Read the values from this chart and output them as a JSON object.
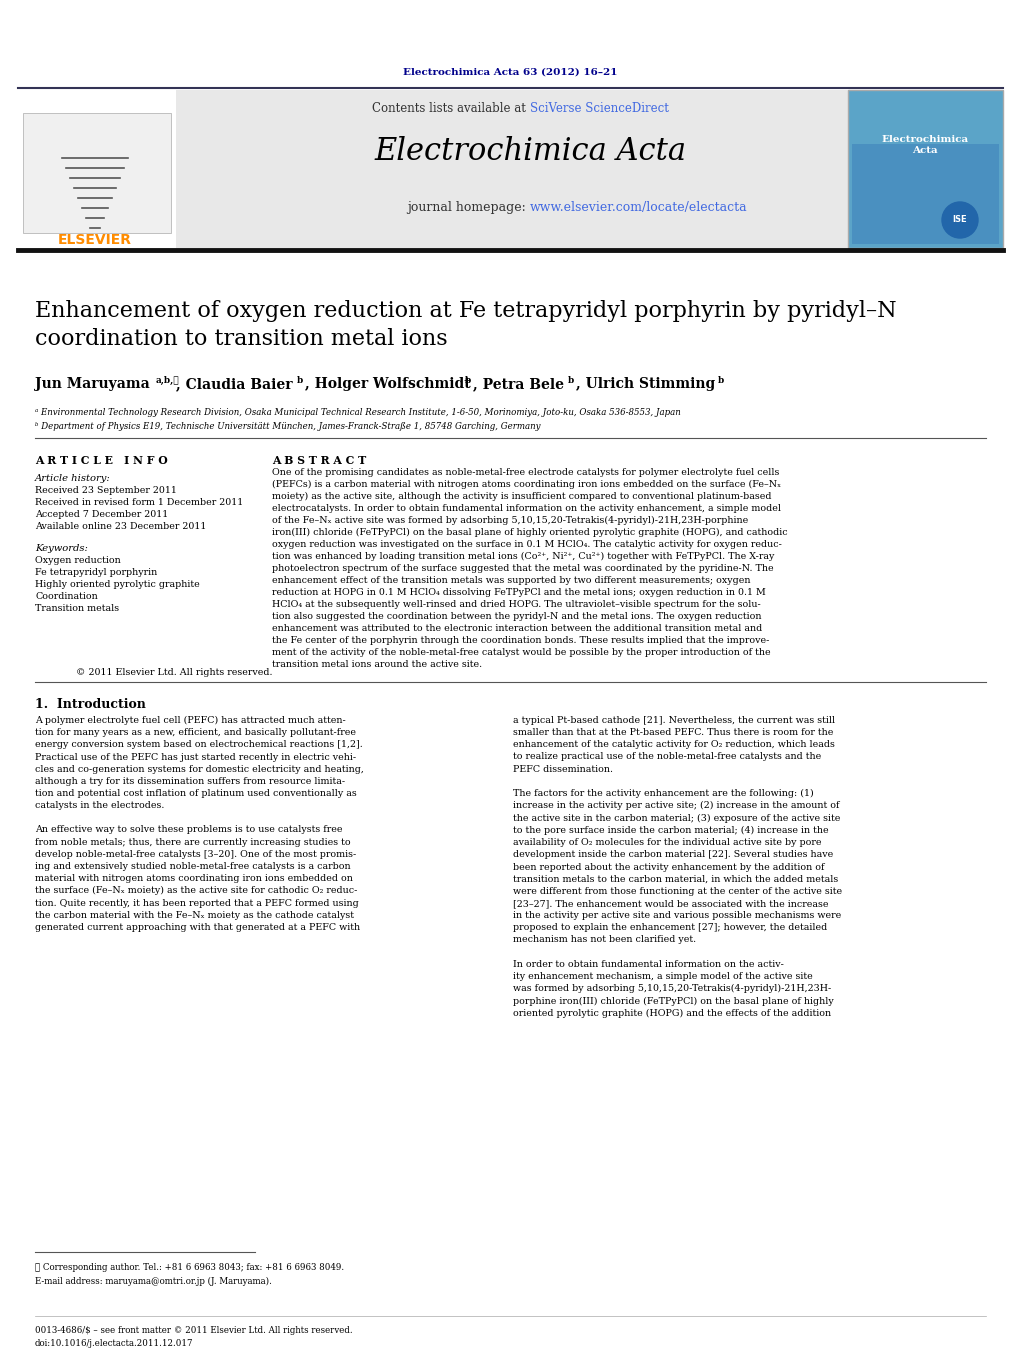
{
  "journal_ref": "Electrochimica Acta 63 (2012) 16–21",
  "journal_ref_color": "#00008B",
  "contents_text": "Contents lists available at ",
  "sciverse_text": "SciVerse ScienceDirect",
  "journal_name": "Electrochimica Acta",
  "journal_homepage_text": "journal homepage: ",
  "journal_url": "www.elsevier.com/locate/electacta",
  "elsevier_color": "#FF8C00",
  "url_color": "#4169E1",
  "sciverse_color": "#4169E1",
  "header_bg": "#E8E8E8",
  "title": "Enhancement of oxygen reduction at Fe tetrapyridyl porphyrin by pyridyl–N\ncoordination to transition metal ions",
  "affil_a": "ᵃ Environmental Technology Research Division, Osaka Municipal Technical Research Institute, 1-6-50, Morinomiya, Joto-ku, Osaka 536-8553, Japan",
  "affil_b": "ᵇ Department of Physics E19, Technische Universitätt München, James-Franck-Straße 1, 85748 Garching, Germany",
  "article_info_title": "A R T I C L E   I N F O",
  "article_history_title": "Article history:",
  "received1": "Received 23 September 2011",
  "received2": "Received in revised form 1 December 2011",
  "accepted": "Accepted 7 December 2011",
  "available": "Available online 23 December 2011",
  "keywords_title": "Keywords:",
  "keyword1": "Oxygen reduction",
  "keyword2": "Fe tetrapyridyl porphyrin",
  "keyword3": "Highly oriented pyrolytic graphite",
  "keyword4": "Coordination",
  "keyword5": "Transition metals",
  "abstract_title": "A B S T R A C T",
  "abstract_text": "One of the promising candidates as noble-metal-free electrode catalysts for polymer electrolyte fuel cells\n(PEFCs) is a carbon material with nitrogen atoms coordinating iron ions embedded on the surface (Fe–Nₓ\nmoiety) as the active site, although the activity is insufficient compared to conventional platinum-based\nelectrocatalysts. In order to obtain fundamental information on the activity enhancement, a simple model\nof the Fe–Nₓ active site was formed by adsorbing 5,10,15,20-Tetrakis(4-pyridyl)-21H,23H-porphine\niron(III) chloride (FeTPyPCl) on the basal plane of highly oriented pyrolytic graphite (HOPG), and cathodic\noxygen reduction was investigated on the surface in 0.1 M HClO₄. The catalytic activity for oxygen reduc-\ntion was enhanced by loading transition metal ions (Co²⁺, Ni²⁺, Cu²⁺) together with FeTPyPCl. The X-ray\nphotoelectron spectrum of the surface suggested that the metal was coordinated by the pyridine-N. The\nenhancement effect of the transition metals was supported by two different measurements; oxygen\nreduction at HOPG in 0.1 M HClO₄ dissolving FeTPyPCl and the metal ions; oxygen reduction in 0.1 M\nHClO₄ at the subsequently well-rinsed and dried HOPG. The ultraviolet–visible spectrum for the solu-\ntion also suggested the coordination between the pyridyl-N and the metal ions. The oxygen reduction\nenhancement was attributed to the electronic interaction between the additional transition metal and\nthe Fe center of the porphyrin through the coordination bonds. These results implied that the improve-\nment of the activity of the noble-metal-free catalyst would be possible by the proper introduction of the\ntransition metal ions around the active site.",
  "copyright_text": "© 2011 Elsevier Ltd. All rights reserved.",
  "section1_title": "1.  Introduction",
  "intro_col1": "A polymer electrolyte fuel cell (PEFC) has attracted much atten-\ntion for many years as a new, efficient, and basically pollutant-free\nenergy conversion system based on electrochemical reactions [1,2].\nPractical use of the PEFC has just started recently in electric vehi-\ncles and co-generation systems for domestic electricity and heating,\nalthough a try for its dissemination suffers from resource limita-\ntion and potential cost inflation of platinum used conventionally as\ncatalysts in the electrodes.\n\nAn effective way to solve these problems is to use catalysts free\nfrom noble metals; thus, there are currently increasing studies to\ndevelop noble-metal-free catalysts [3–20]. One of the most promis-\ning and extensively studied noble-metal-free catalysts is a carbon\nmaterial with nitrogen atoms coordinating iron ions embedded on\nthe surface (Fe–Nₓ moiety) as the active site for cathodic O₂ reduc-\ntion. Quite recently, it has been reported that a PEFC formed using\nthe carbon material with the Fe–Nₓ moiety as the cathode catalyst\ngenerated current approaching with that generated at a PEFC with",
  "intro_col2": "a typical Pt-based cathode [21]. Nevertheless, the current was still\nsmaller than that at the Pt-based PEFC. Thus there is room for the\nenhancement of the catalytic activity for O₂ reduction, which leads\nto realize practical use of the noble-metal-free catalysts and the\nPEFC dissemination.\n\nThe factors for the activity enhancement are the following: (1)\nincrease in the activity per active site; (2) increase in the amount of\nthe active site in the carbon material; (3) exposure of the active site\nto the pore surface inside the carbon material; (4) increase in the\navailability of O₂ molecules for the individual active site by pore\ndevelopment inside the carbon material [22]. Several studies have\nbeen reported about the activity enhancement by the addition of\ntransition metals to the carbon material, in which the added metals\nwere different from those functioning at the center of the active site\n[23–27]. The enhancement would be associated with the increase\nin the activity per active site and various possible mechanisms were\nproposed to explain the enhancement [27]; however, the detailed\nmechanism has not been clarified yet.\n\nIn order to obtain fundamental information on the activ-\nity enhancement mechanism, a simple model of the active site\nwas formed by adsorbing 5,10,15,20-Tetrakis(4-pyridyl)-21H,23H-\nporphine iron(III) chloride (FeTPyPCl) on the basal plane of highly\noriented pyrolytic graphite (HOPG) and the effects of the addition",
  "footnote_star": "⋆ Corresponding author. Tel.: +81 6 6963 8043; fax: +81 6 6963 8049.",
  "footnote_email": "E-mail address: maruyama@omtri.or.jp (J. Maruyama).",
  "footer1": "0013-4686/$ – see front matter © 2011 Elsevier Ltd. All rights reserved.",
  "footer2": "doi:10.1016/j.electacta.2011.12.017"
}
